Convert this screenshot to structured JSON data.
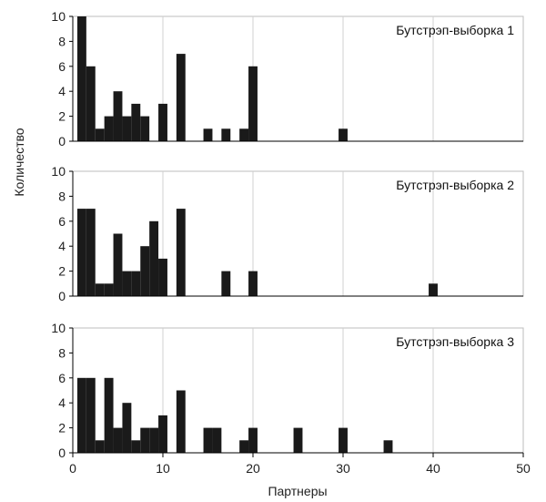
{
  "chart_data": {
    "type": "bar",
    "ylabel": "Количество",
    "xlabel": "Партнеры",
    "xlim": [
      0,
      50
    ],
    "xticks": [
      0,
      10,
      20,
      30,
      40,
      50
    ],
    "ylim": [
      0,
      10
    ],
    "yticks": [
      0,
      2,
      4,
      6,
      8,
      10
    ],
    "bin_width": 1,
    "grid": "vertical",
    "panels": [
      {
        "title": "Бутстрэп-выборка 1",
        "bins": [
          1,
          2,
          3,
          4,
          5,
          6,
          7,
          8,
          10,
          12,
          15,
          17,
          19,
          20,
          30
        ],
        "counts": [
          10,
          6,
          1,
          2,
          4,
          2,
          3,
          2,
          3,
          7,
          1,
          1,
          1,
          6,
          1
        ]
      },
      {
        "title": "Бутстрэп-выборка 2",
        "bins": [
          1,
          2,
          3,
          4,
          5,
          6,
          7,
          8,
          9,
          10,
          12,
          17,
          20,
          40
        ],
        "counts": [
          7,
          7,
          1,
          1,
          5,
          2,
          2,
          4,
          6,
          3,
          7,
          2,
          2,
          1
        ]
      },
      {
        "title": "Бутстрэп-выборка 3",
        "bins": [
          1,
          2,
          3,
          4,
          5,
          6,
          7,
          8,
          9,
          10,
          12,
          15,
          16,
          19,
          20,
          25,
          30,
          35
        ],
        "counts": [
          6,
          6,
          1,
          6,
          2,
          4,
          1,
          2,
          2,
          3,
          5,
          2,
          2,
          1,
          2,
          2,
          2,
          1
        ]
      }
    ]
  }
}
